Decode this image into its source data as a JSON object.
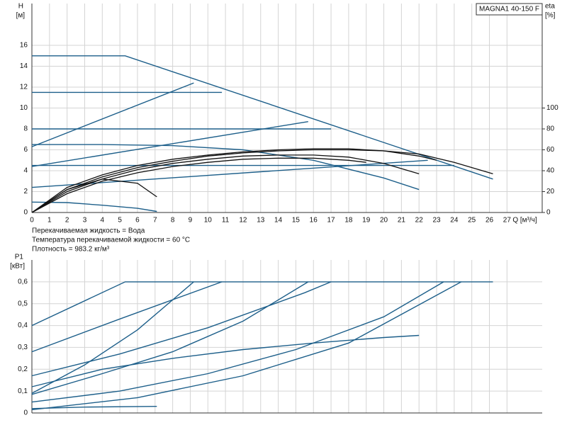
{
  "chart_data": [
    {
      "type": "line",
      "title": "MAGNA1 40-150 F",
      "y_label": {
        "name": "H",
        "unit": "[м]"
      },
      "y2_label": {
        "name": "eta",
        "unit": "[%]"
      },
      "x_label": "Q [м³/ч]",
      "notes": [
        "Перекачиваемая жидкость = Вода",
        "Температура перекачиваемой жидкости = 60 °C",
        "Плотность = 983.2 кг/м³"
      ],
      "xlim": [
        0,
        29
      ],
      "xticks": [
        0,
        1,
        2,
        3,
        4,
        5,
        6,
        7,
        8,
        9,
        10,
        11,
        12,
        13,
        14,
        15,
        16,
        17,
        18,
        19,
        20,
        21,
        22,
        23,
        24,
        25,
        26,
        27
      ],
      "ylim": [
        0,
        20
      ],
      "yticks": [
        0,
        2,
        4,
        6,
        8,
        10,
        12,
        14,
        16
      ],
      "y2lim": [
        0,
        200
      ],
      "y2ticks": [
        0,
        20,
        40,
        60,
        80,
        100
      ],
      "grid": true,
      "series": [
        {
          "color": "#1d5f8a",
          "x": [
            0,
            5.3,
            26.2
          ],
          "values": [
            15,
            15,
            3.2
          ]
        },
        {
          "color": "#1d5f8a",
          "x": [
            0,
            10.8
          ],
          "values": [
            11.5,
            11.5
          ]
        },
        {
          "color": "#1d5f8a",
          "x": [
            0,
            17
          ],
          "values": [
            8,
            8
          ]
        },
        {
          "color": "#1d5f8a",
          "x": [
            0,
            24
          ],
          "values": [
            4.5,
            4.5
          ]
        },
        {
          "color": "#1d5f8a",
          "x": [
            0,
            9.2
          ],
          "values": [
            6.3,
            12.4
          ]
        },
        {
          "color": "#1d5f8a",
          "x": [
            0,
            15.7
          ],
          "values": [
            4.4,
            8.7
          ]
        },
        {
          "color": "#1d5f8a",
          "x": [
            0,
            22.5
          ],
          "values": [
            2.4,
            5.0
          ]
        },
        {
          "color": "#1d5f8a",
          "x": [
            0,
            4,
            8,
            12,
            16,
            20,
            22
          ],
          "values": [
            6.5,
            6.5,
            6.4,
            6.0,
            5.0,
            3.3,
            2.2
          ]
        },
        {
          "color": "#1d5f8a",
          "x": [
            0,
            2,
            4,
            6,
            7.1
          ],
          "values": [
            1.0,
            0.95,
            0.7,
            0.4,
            0.1
          ]
        },
        {
          "color": "#111111",
          "axis": "y2",
          "x": [
            0,
            2,
            4,
            6,
            8,
            10,
            12,
            14,
            16,
            18,
            20,
            22,
            24,
            26.2
          ],
          "values": [
            0,
            22,
            34,
            43,
            49,
            54,
            57,
            59,
            60,
            60,
            59,
            56,
            48,
            37
          ]
        },
        {
          "color": "#111111",
          "axis": "y2",
          "x": [
            0,
            2,
            4,
            6,
            8,
            10,
            12,
            14,
            16,
            18,
            20,
            22
          ],
          "values": [
            0,
            20,
            32,
            41,
            47,
            51,
            54,
            55,
            55,
            53,
            47,
            37
          ]
        },
        {
          "color": "#111111",
          "axis": "y2",
          "x": [
            0,
            2,
            4,
            6,
            8,
            10,
            12,
            14,
            16,
            18,
            19
          ],
          "values": [
            0,
            18,
            30,
            38,
            44,
            48,
            51,
            52,
            52,
            50,
            48
          ]
        },
        {
          "color": "#111111",
          "axis": "y2",
          "x": [
            0,
            2,
            4,
            6,
            8,
            10,
            12,
            14,
            16,
            18,
            20,
            22,
            23
          ],
          "values": [
            0,
            24,
            36,
            45,
            51,
            55,
            58,
            60,
            61,
            61,
            59,
            54,
            50
          ]
        },
        {
          "color": "#111111",
          "axis": "y2",
          "x": [
            0,
            2,
            4,
            6,
            7.1
          ],
          "values": [
            0,
            22,
            32,
            28,
            15
          ]
        }
      ]
    },
    {
      "type": "line",
      "y_label": {
        "name": "P1",
        "unit": "[кВт]"
      },
      "xlim": [
        0,
        29
      ],
      "ylim": [
        0,
        0.7
      ],
      "yticks": [
        0,
        {
          "value": 0.1,
          "label": "0,1"
        },
        {
          "value": 0.2,
          "label": "0,2"
        },
        {
          "value": 0.3,
          "label": "0,3"
        },
        {
          "value": 0.4,
          "label": "0,4"
        },
        {
          "value": 0.5,
          "label": "0,5"
        },
        {
          "value": 0.6,
          "label": "0,6"
        }
      ],
      "grid": true,
      "series": [
        {
          "color": "#1d5f8a",
          "x": [
            0,
            5.3,
            26.2
          ],
          "values": [
            0.4,
            0.6,
            0.6
          ]
        },
        {
          "color": "#1d5f8a",
          "x": [
            0,
            5,
            10.8
          ],
          "values": [
            0.28,
            0.43,
            0.6
          ]
        },
        {
          "color": "#1d5f8a",
          "x": [
            0,
            5,
            10,
            15.5,
            17
          ],
          "values": [
            0.17,
            0.27,
            0.39,
            0.55,
            0.6
          ]
        },
        {
          "color": "#1d5f8a",
          "x": [
            0,
            4,
            8,
            12,
            16,
            20,
            22
          ],
          "values": [
            0.12,
            0.2,
            0.25,
            0.29,
            0.32,
            0.345,
            0.355
          ]
        },
        {
          "color": "#1d5f8a",
          "x": [
            0,
            3,
            6,
            9.2
          ],
          "values": [
            0.09,
            0.22,
            0.38,
            0.6
          ]
        },
        {
          "color": "#1d5f8a",
          "x": [
            0,
            4,
            8,
            12,
            15.7
          ],
          "values": [
            0.085,
            0.18,
            0.28,
            0.42,
            0.6
          ]
        },
        {
          "color": "#1d5f8a",
          "x": [
            0,
            5,
            10,
            15,
            20,
            23.4
          ],
          "values": [
            0.05,
            0.1,
            0.18,
            0.29,
            0.44,
            0.6
          ]
        },
        {
          "color": "#1d5f8a",
          "x": [
            0,
            6,
            12,
            18,
            24.4
          ],
          "values": [
            0.015,
            0.07,
            0.17,
            0.32,
            0.6
          ]
        },
        {
          "color": "#1d5f8a",
          "x": [
            0,
            3,
            7.1
          ],
          "values": [
            0.02,
            0.027,
            0.03
          ]
        }
      ]
    }
  ]
}
